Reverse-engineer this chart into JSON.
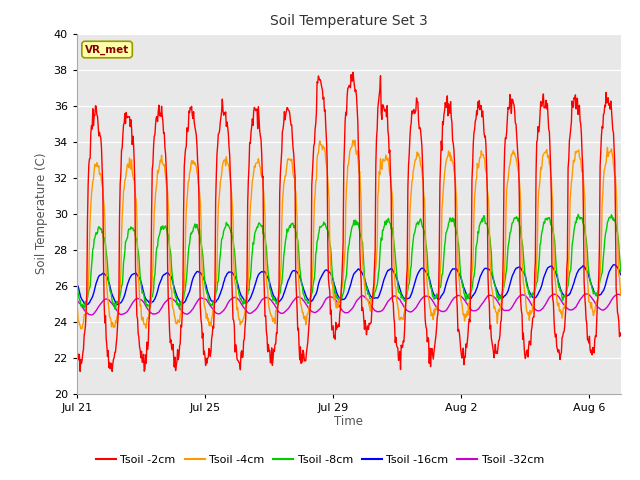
{
  "title": "Soil Temperature Set 3",
  "xlabel": "Time",
  "ylabel": "Soil Temperature (C)",
  "ylim": [
    20,
    40
  ],
  "yticks": [
    20,
    22,
    24,
    26,
    28,
    30,
    32,
    34,
    36,
    38,
    40
  ],
  "fig_bg_color": "#ffffff",
  "plot_bg_color": "#e8e8e8",
  "grid_color": "#ffffff",
  "annotation_text": "VR_met",
  "annotation_bg": "#ffffaa",
  "annotation_border": "#999900",
  "annotation_text_color": "#880000",
  "colors": {
    "2cm": "#ff0000",
    "4cm": "#ff9900",
    "8cm": "#00cc00",
    "16cm": "#0000ff",
    "32cm": "#cc00cc"
  },
  "xtick_labels": [
    "Jul 21",
    "Jul 25",
    "Jul 29",
    "Aug 2",
    "Aug 6"
  ],
  "xtick_pos": [
    0,
    4,
    8,
    12,
    16
  ],
  "n_days": 17
}
